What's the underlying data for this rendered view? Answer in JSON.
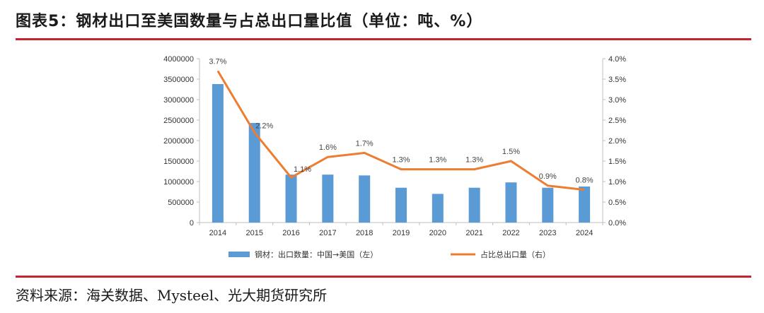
{
  "title": "图表5：钢材出口至美国数量与占总出口量比值（单位：吨、%）",
  "source": "资料来源：海关数据、Mysteel、光大期货研究所",
  "colors": {
    "bar": "#5b9bd5",
    "line": "#ed7d31",
    "accent_rule": "#c8232c"
  },
  "chart_data": {
    "type": "bar",
    "categories": [
      "2014",
      "2015",
      "2016",
      "2017",
      "2018",
      "2019",
      "2020",
      "2021",
      "2022",
      "2023",
      "2024"
    ],
    "series": [
      {
        "name": "钢材：出口数量：中国→美国（左）",
        "type": "bar",
        "axis": "left",
        "values": [
          3380000,
          2430000,
          1170000,
          1170000,
          1150000,
          850000,
          700000,
          850000,
          980000,
          850000,
          880000
        ]
      },
      {
        "name": "占比总出口量（右）",
        "type": "line",
        "axis": "right",
        "values": [
          3.7,
          2.2,
          1.1,
          1.6,
          1.7,
          1.3,
          1.3,
          1.3,
          1.5,
          0.9,
          0.8
        ],
        "labels": [
          "3.7%",
          "2.2%",
          "1.1%",
          "1.6%",
          "1.7%",
          "1.3%",
          "1.3%",
          "1.3%",
          "1.5%",
          "0.9%",
          "0.8%"
        ]
      }
    ],
    "y_left": {
      "ylim": [
        0,
        4000000
      ],
      "ticks": [
        "0",
        "500000",
        "1000000",
        "1500000",
        "2000000",
        "2500000",
        "3000000",
        "3500000",
        "4000000"
      ]
    },
    "y_right": {
      "ylim": [
        0,
        4.0
      ],
      "ticks": [
        "0.0%",
        "0.5%",
        "1.0%",
        "1.5%",
        "2.0%",
        "2.5%",
        "3.0%",
        "3.5%",
        "4.0%"
      ]
    },
    "grid": false,
    "legend_position": "bottom"
  }
}
